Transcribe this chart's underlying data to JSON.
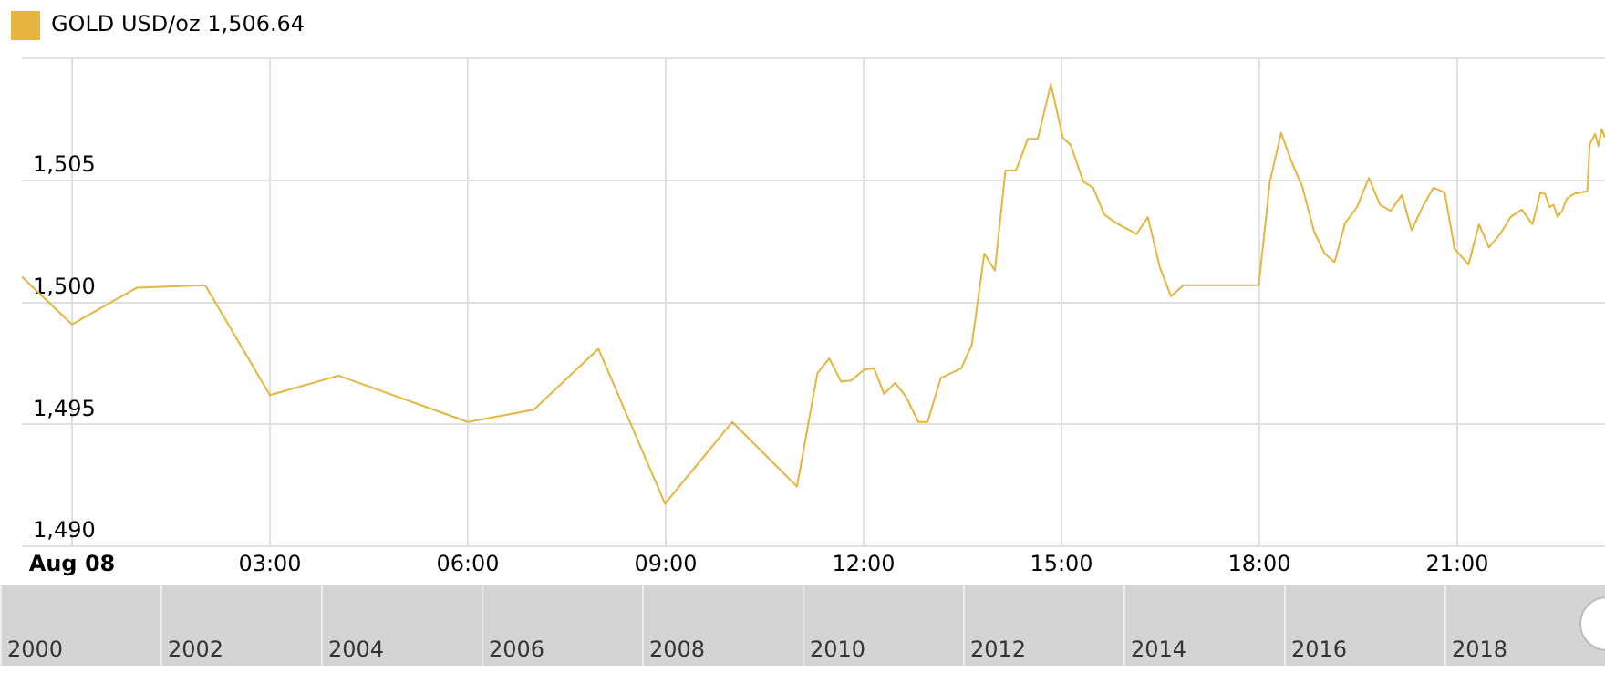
{
  "chart_data": {
    "type": "line",
    "legend": "top left",
    "grid": true,
    "marker": "none",
    "line_style": "solid",
    "xlim": [
      -0.76,
      23.24
    ],
    "xticks": [
      {
        "value": 0,
        "label": "Aug 08"
      },
      {
        "value": 3,
        "label": "03:00"
      },
      {
        "value": 6,
        "label": "06:00"
      },
      {
        "value": 9,
        "label": "09:00"
      },
      {
        "value": 12,
        "label": "12:00"
      },
      {
        "value": 15,
        "label": "15:00"
      },
      {
        "value": 18,
        "label": "18:00"
      },
      {
        "value": 21,
        "label": "21:00"
      }
    ],
    "ylim": [
      1490,
      1510
    ],
    "yticks": [
      {
        "value": 1490,
        "label": "1,490"
      },
      {
        "value": 1495,
        "label": "1,495"
      },
      {
        "value": 1500,
        "label": "1,500"
      },
      {
        "value": 1505,
        "label": "1,505"
      },
      {
        "value": 1510,
        "label": null
      }
    ],
    "annotations": [
      "2000",
      "2002",
      "2004",
      "2006",
      "2008",
      "2010",
      "2012",
      "2014",
      "2016",
      "2018"
    ],
    "series": [
      {
        "name": "GOLD USD/oz 1,506.64",
        "color": "#e5b53f",
        "x": [
          -0.76,
          0,
          0.98,
          2.02,
          3.0,
          4.04,
          6.0,
          7.0,
          7.98,
          8.99,
          10.01,
          10.99,
          11.3,
          11.48,
          11.66,
          11.81,
          12.01,
          12.16,
          12.31,
          12.48,
          12.65,
          12.83,
          12.97,
          13.17,
          13.48,
          13.64,
          13.83,
          13.99,
          14.15,
          14.31,
          14.49,
          14.64,
          14.84,
          15.02,
          15.14,
          15.33,
          15.48,
          15.65,
          15.83,
          16.14,
          16.31,
          16.49,
          16.66,
          16.85,
          17.99,
          18.16,
          18.33,
          18.49,
          18.65,
          18.83,
          18.99,
          19.14,
          19.3,
          19.48,
          19.66,
          19.83,
          19.99,
          20.16,
          20.31,
          20.48,
          20.64,
          20.81,
          20.96,
          21.17,
          21.33,
          21.48,
          21.65,
          21.81,
          21.98,
          22.14,
          22.26,
          22.33,
          22.4,
          22.46,
          22.52,
          22.59,
          22.66,
          22.77,
          22.86,
          22.97,
          23.01,
          23.09,
          23.14,
          23.19,
          23.24
        ],
        "values": [
          1501.05,
          1499.1,
          1500.6,
          1500.7,
          1496.2,
          1497.0,
          1495.1,
          1495.6,
          1498.1,
          1491.75,
          1495.1,
          1492.45,
          1497.1,
          1497.7,
          1496.75,
          1496.8,
          1497.25,
          1497.3,
          1496.25,
          1496.7,
          1496.1,
          1495.1,
          1495.1,
          1496.9,
          1497.3,
          1498.25,
          1502.0,
          1501.3,
          1505.4,
          1505.4,
          1506.7,
          1506.7,
          1508.95,
          1506.75,
          1506.45,
          1504.95,
          1504.7,
          1503.6,
          1503.25,
          1502.8,
          1503.5,
          1501.45,
          1500.25,
          1500.7,
          1500.7,
          1504.95,
          1506.95,
          1505.75,
          1504.75,
          1502.9,
          1502.0,
          1501.65,
          1503.25,
          1503.9,
          1505.1,
          1504.0,
          1503.75,
          1504.4,
          1502.95,
          1503.95,
          1504.7,
          1504.5,
          1502.2,
          1501.55,
          1503.2,
          1502.25,
          1502.8,
          1503.5,
          1503.8,
          1503.2,
          1504.5,
          1504.45,
          1503.9,
          1504.0,
          1503.5,
          1503.75,
          1504.25,
          1504.45,
          1504.5,
          1504.55,
          1506.5,
          1506.9,
          1506.4,
          1507.1,
          1506.75
        ]
      }
    ]
  }
}
